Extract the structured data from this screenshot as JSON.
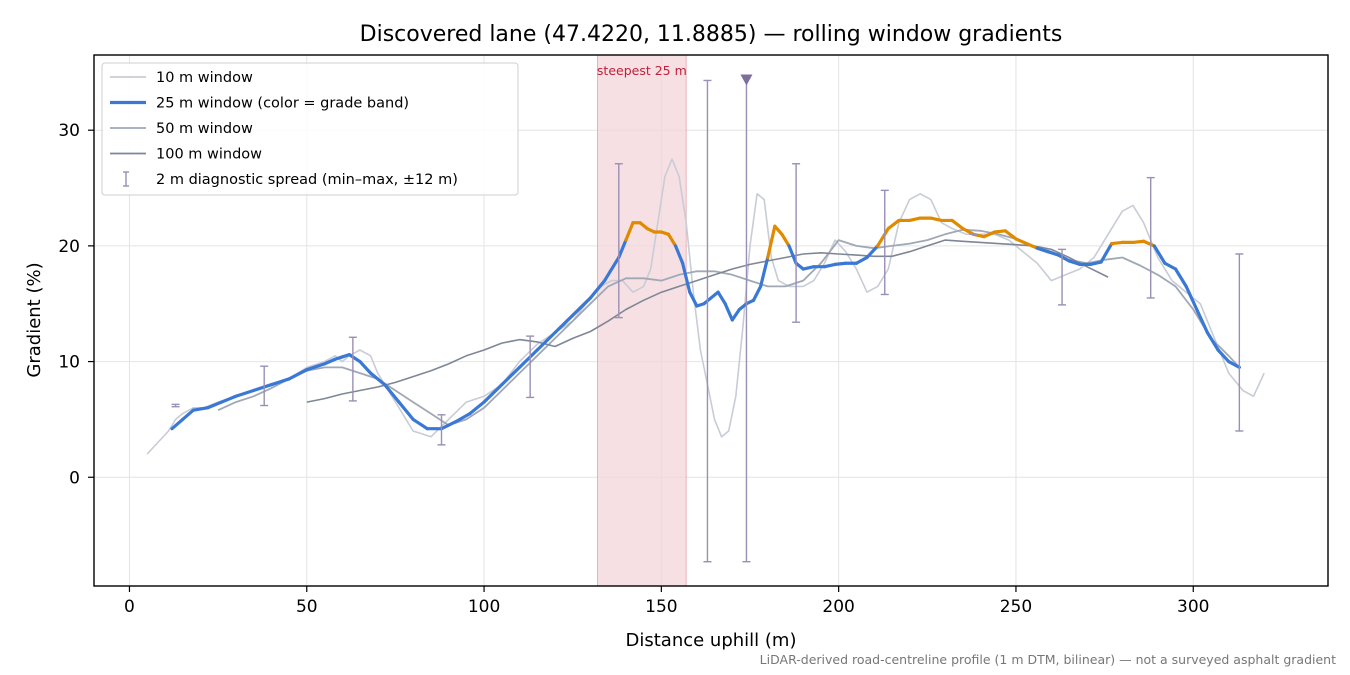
{
  "chart_data": {
    "type": "line",
    "title": "Discovered lane (47.4220, 11.8885) — rolling window gradients",
    "xlabel": "Distance uphill (m)",
    "ylabel": "Gradient (%)",
    "xlim": [
      -10,
      338
    ],
    "ylim": [
      -9.4,
      36.5
    ],
    "xticks": [
      0,
      50,
      100,
      150,
      200,
      250,
      300
    ],
    "yticks": [
      0,
      10,
      20,
      30
    ],
    "grid": true,
    "legend_position": "top-left",
    "footnote": "LiDAR-derived road-centreline profile (1 m DTM, bilinear) — not a surveyed asphalt gradient",
    "steepest_band": {
      "x_start": 132,
      "x_end": 157,
      "label": "steepest 25 m"
    },
    "legend": [
      {
        "label": "10 m window",
        "color": "#c8ccd6",
        "kind": "line"
      },
      {
        "label": "25 m window (color = grade band)",
        "color": "#3a78d6",
        "kind": "line"
      },
      {
        "label": "50 m window",
        "color": "#a0a8b6",
        "kind": "line"
      },
      {
        "label": "100 m window",
        "color": "#7e8796",
        "kind": "line"
      },
      {
        "label": "2 m diagnostic spread (min–max, ±12 m)",
        "color": "#9a8fb4",
        "kind": "errorbar"
      }
    ],
    "grade_band_threshold": 20,
    "grade_band_colors": {
      "low": "#3a78d6",
      "high": "#e08a00"
    },
    "series": [
      {
        "name": "10 m window",
        "x": [
          5,
          8,
          11,
          13,
          15,
          18,
          21,
          25,
          30,
          35,
          40,
          45,
          50,
          55,
          58,
          60,
          62,
          65,
          68,
          70,
          73,
          76,
          80,
          85,
          90,
          95,
          100,
          105,
          110,
          115,
          120,
          125,
          130,
          133,
          136,
          139,
          142,
          145,
          147,
          149,
          151,
          153,
          155,
          157,
          159,
          161,
          163,
          165,
          167,
          169,
          171,
          173,
          175,
          177,
          179,
          181,
          183,
          186,
          190,
          193,
          196,
          199,
          202,
          205,
          208,
          211,
          214,
          217,
          220,
          223,
          226,
          229,
          232,
          236,
          240,
          244,
          248,
          252,
          256,
          260,
          264,
          268,
          272,
          276,
          280,
          283,
          286,
          290,
          294,
          298,
          302,
          306,
          310,
          314,
          317,
          320
        ],
        "y": [
          2,
          3,
          4,
          5,
          5.5,
          6,
          6,
          6.5,
          7,
          7.5,
          8,
          8.5,
          9.5,
          10,
          10.5,
          10,
          10.5,
          11,
          10.5,
          9,
          7.5,
          6,
          4,
          3.5,
          5,
          6.5,
          7,
          8,
          10,
          11.5,
          12.5,
          13.5,
          15.5,
          16.5,
          17,
          17,
          16,
          16.5,
          18,
          22,
          26,
          27.5,
          26,
          22,
          16,
          11,
          8,
          5,
          3.5,
          4,
          7,
          13,
          20,
          24.5,
          24,
          19,
          17,
          16.5,
          16.5,
          17,
          18.5,
          20.5,
          19.5,
          18,
          16,
          16.5,
          18,
          22,
          24,
          24.5,
          24,
          22,
          21.5,
          21,
          21,
          21,
          20.5,
          19.5,
          18.5,
          17,
          17.5,
          18,
          19,
          21,
          23,
          23.5,
          22,
          19,
          17,
          16,
          15,
          12,
          9,
          7.5,
          7,
          9
        ]
      },
      {
        "name": "25 m window (color = grade band)",
        "x": [
          12,
          15,
          18,
          22,
          26,
          30,
          35,
          40,
          45,
          50,
          55,
          58,
          60,
          62,
          65,
          68,
          72,
          76,
          80,
          84,
          88,
          92,
          96,
          100,
          105,
          110,
          115,
          120,
          125,
          130,
          134,
          138,
          140,
          142,
          144,
          146,
          148,
          150,
          152,
          154,
          156,
          158,
          160,
          162,
          164,
          166,
          168,
          170,
          172,
          174,
          176,
          178,
          180,
          182,
          184,
          186,
          188,
          190,
          193,
          196,
          199,
          202,
          205,
          208,
          211,
          214,
          217,
          220,
          223,
          226,
          229,
          232,
          235,
          238,
          241,
          244,
          247,
          250,
          253,
          256,
          259,
          262,
          265,
          268,
          271,
          274,
          277,
          280,
          283,
          286,
          289,
          292,
          295,
          298,
          301,
          304,
          307,
          310,
          313
        ],
        "y": [
          4.2,
          5,
          5.8,
          6,
          6.5,
          7,
          7.5,
          8,
          8.5,
          9.3,
          9.8,
          10.2,
          10.4,
          10.6,
          10,
          9,
          8,
          6.5,
          5,
          4.2,
          4.2,
          4.8,
          5.5,
          6.5,
          8,
          9.5,
          11,
          12.5,
          14,
          15.5,
          17,
          19,
          20.5,
          22,
          22,
          21.5,
          21.2,
          21.2,
          21,
          20,
          18.5,
          16,
          14.8,
          15,
          15.5,
          16,
          15,
          13.6,
          14.5,
          15,
          15.3,
          16.5,
          19,
          21.7,
          21,
          20,
          18.5,
          18,
          18.2,
          18.2,
          18.4,
          18.5,
          18.5,
          19,
          20,
          21.5,
          22.2,
          22.2,
          22.4,
          22.4,
          22.2,
          22.2,
          21.5,
          21,
          20.8,
          21.2,
          21.3,
          20.6,
          20.2,
          19.8,
          19.5,
          19.2,
          18.7,
          18.4,
          18.4,
          18.6,
          20.2,
          20.3,
          20.3,
          20.4,
          20,
          18.5,
          18,
          16.5,
          14.5,
          12.5,
          11,
          10,
          9.5
        ]
      },
      {
        "name": "50 m window",
        "x": [
          25,
          30,
          35,
          40,
          45,
          50,
          55,
          60,
          65,
          70,
          75,
          80,
          85,
          90,
          95,
          100,
          105,
          110,
          115,
          120,
          125,
          130,
          135,
          140,
          145,
          150,
          155,
          160,
          165,
          170,
          175,
          180,
          185,
          190,
          195,
          200,
          205,
          210,
          215,
          220,
          225,
          230,
          235,
          240,
          245,
          250,
          255,
          260,
          265,
          270,
          275,
          280,
          285,
          290,
          295,
          300,
          305,
          310,
          313
        ],
        "y": [
          5.8,
          6.5,
          7,
          7.7,
          8.5,
          9.2,
          9.5,
          9.5,
          9,
          8.5,
          7.5,
          6.5,
          5.5,
          4.5,
          5,
          6,
          7.5,
          9,
          10.5,
          12,
          13.5,
          15,
          16.5,
          17.2,
          17.2,
          17,
          17.5,
          17.8,
          17.8,
          17.5,
          17,
          16.5,
          16.5,
          17,
          18.5,
          20.5,
          20,
          19.8,
          20,
          20.2,
          20.5,
          21,
          21.4,
          21.3,
          21,
          20.6,
          20,
          19.5,
          18.8,
          18.5,
          18.8,
          19,
          18.3,
          17.5,
          16.5,
          14.5,
          12,
          10.5,
          9.5
        ]
      },
      {
        "name": "100 m window",
        "x": [
          50,
          55,
          60,
          65,
          70,
          75,
          80,
          85,
          90,
          95,
          100,
          105,
          110,
          115,
          120,
          125,
          130,
          135,
          140,
          145,
          150,
          155,
          160,
          165,
          170,
          175,
          180,
          185,
          190,
          195,
          200,
          205,
          210,
          215,
          220,
          225,
          230,
          235,
          240,
          245,
          250,
          255,
          260,
          265,
          270,
          276
        ],
        "y": [
          6.5,
          6.8,
          7.2,
          7.5,
          7.8,
          8.2,
          8.7,
          9.2,
          9.8,
          10.5,
          11,
          11.6,
          11.9,
          11.7,
          11.3,
          12,
          12.6,
          13.5,
          14.5,
          15.3,
          16,
          16.5,
          17,
          17.5,
          18,
          18.4,
          18.7,
          19,
          19.3,
          19.4,
          19.3,
          19.2,
          19.1,
          19.1,
          19.5,
          20,
          20.5,
          20.4,
          20.3,
          20.2,
          20.1,
          20,
          19.7,
          19,
          18.2,
          17.3
        ]
      }
    ],
    "error_bars": [
      {
        "x": 13,
        "y": 6.2,
        "min": 6.1,
        "max": 6.3
      },
      {
        "x": 38,
        "y": 7.9,
        "min": 6.2,
        "max": 9.6
      },
      {
        "x": 63,
        "y": 9.4,
        "min": 6.6,
        "max": 12.1
      },
      {
        "x": 88,
        "y": 4.1,
        "min": 2.8,
        "max": 5.4
      },
      {
        "x": 113,
        "y": 9.6,
        "min": 6.9,
        "max": 12.2
      },
      {
        "x": 138,
        "y": 20.5,
        "min": 13.8,
        "max": 27.1
      },
      {
        "x": 163,
        "y": 13.5,
        "min": -7.3,
        "max": 34.3
      },
      {
        "x": 188,
        "y": 20.3,
        "min": 13.4,
        "max": 27.1
      },
      {
        "x": 213,
        "y": 20.3,
        "min": 15.8,
        "max": 24.8
      },
      {
        "x": 238,
        "y": 21,
        "min": 21,
        "max": 21
      },
      {
        "x": 263,
        "y": 17.3,
        "min": 14.9,
        "max": 19.7
      },
      {
        "x": 288,
        "y": 20.7,
        "min": 15.5,
        "max": 25.9
      },
      {
        "x": 313,
        "y": 11.6,
        "min": 4,
        "max": 19.3
      }
    ],
    "peak_marker": {
      "x": 174,
      "min": -7.3,
      "max": 34.3
    }
  }
}
